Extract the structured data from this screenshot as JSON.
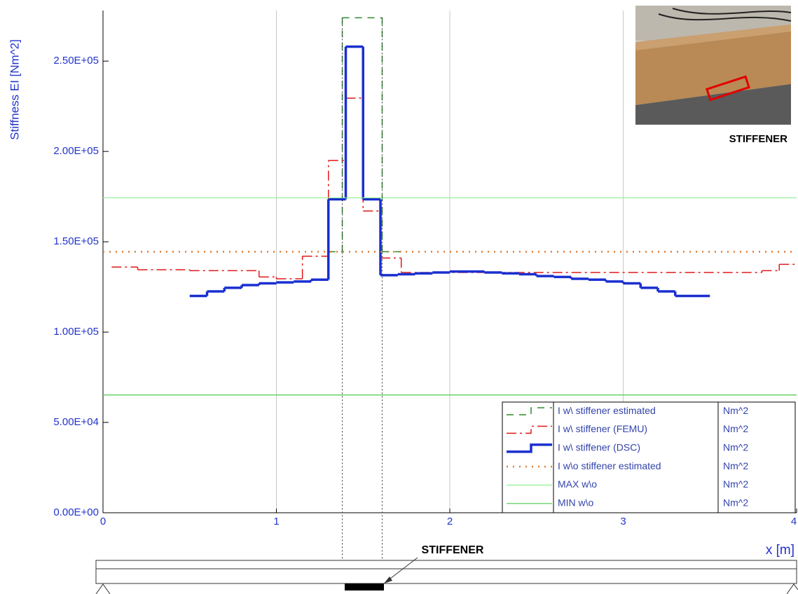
{
  "chart_data": {
    "type": "step",
    "y_label": "Stiffness EI [Nm^2]",
    "x_label": "x [m]",
    "xlim": [
      0,
      4
    ],
    "ylim": [
      0,
      278000
    ],
    "xticks": [
      0,
      1,
      2,
      3,
      4
    ],
    "yticks": [
      {
        "value": 0,
        "label": "0.00E+00"
      },
      {
        "value": 50000,
        "label": "5.00E+04"
      },
      {
        "value": 100000,
        "label": "1.00E+05"
      },
      {
        "value": 150000,
        "label": "1.50E+05"
      },
      {
        "value": 200000,
        "label": "2.00E+05"
      },
      {
        "value": 250000,
        "label": "2.50E+05"
      }
    ],
    "grid": "x",
    "legend_unit": "Nm^2",
    "photo_caption": "STIFFENER",
    "beam_label": "STIFFENER",
    "series": [
      {
        "name": "I w\\ stiffener estimated",
        "color": "#2e8b2e",
        "style": "dashed",
        "width": 1.5,
        "bins": [
          1.3,
          1.38,
          1.61,
          1.72
        ],
        "values": [
          144500,
          274000,
          144500
        ]
      },
      {
        "name": "I w\\ stiffener (FEMU)",
        "color": "#e01818",
        "style": "dashdot",
        "width": 1.5,
        "bins": [
          0.05,
          0.2,
          0.5,
          0.9,
          1.0,
          1.15,
          1.3,
          1.4,
          1.5,
          1.6,
          1.72,
          3.8,
          3.9,
          4.0
        ],
        "values": [
          136000,
          134500,
          134000,
          130500,
          129500,
          142000,
          195000,
          229500,
          167000,
          141000,
          133000,
          134000,
          137500
        ]
      },
      {
        "name": "I w\\ stiffener (DSC)",
        "color": "#1a2fd0",
        "style": "solid",
        "width": 3.5,
        "bins": [
          0.5,
          0.6,
          0.7,
          0.8,
          0.9,
          1.0,
          1.1,
          1.2,
          1.3,
          1.4,
          1.5,
          1.6,
          1.7,
          1.8,
          1.9,
          2.0,
          2.2,
          2.3,
          2.4,
          2.5,
          2.6,
          2.7,
          2.8,
          2.9,
          3.0,
          3.1,
          3.2,
          3.3,
          3.5
        ],
        "values": [
          120000,
          122500,
          124500,
          126000,
          127000,
          127500,
          128000,
          129000,
          173500,
          258000,
          173500,
          131500,
          132000,
          132500,
          133000,
          133500,
          133000,
          132500,
          132000,
          131000,
          130500,
          129500,
          129000,
          128000,
          127000,
          124500,
          122500,
          120000
        ]
      },
      {
        "name": "I w\\o stiffener estimated",
        "color": "#e07a30",
        "style": "dotted",
        "width": 2.5,
        "values": [
          144500
        ]
      },
      {
        "name": "MAX w\\o",
        "color": "#90ee90",
        "style": "solid",
        "width": 1.2,
        "values": [
          174300
        ]
      },
      {
        "name": "MIN w\\o",
        "color": "#4cc84c",
        "style": "solid",
        "width": 1.2,
        "values": [
          65200
        ]
      }
    ]
  }
}
